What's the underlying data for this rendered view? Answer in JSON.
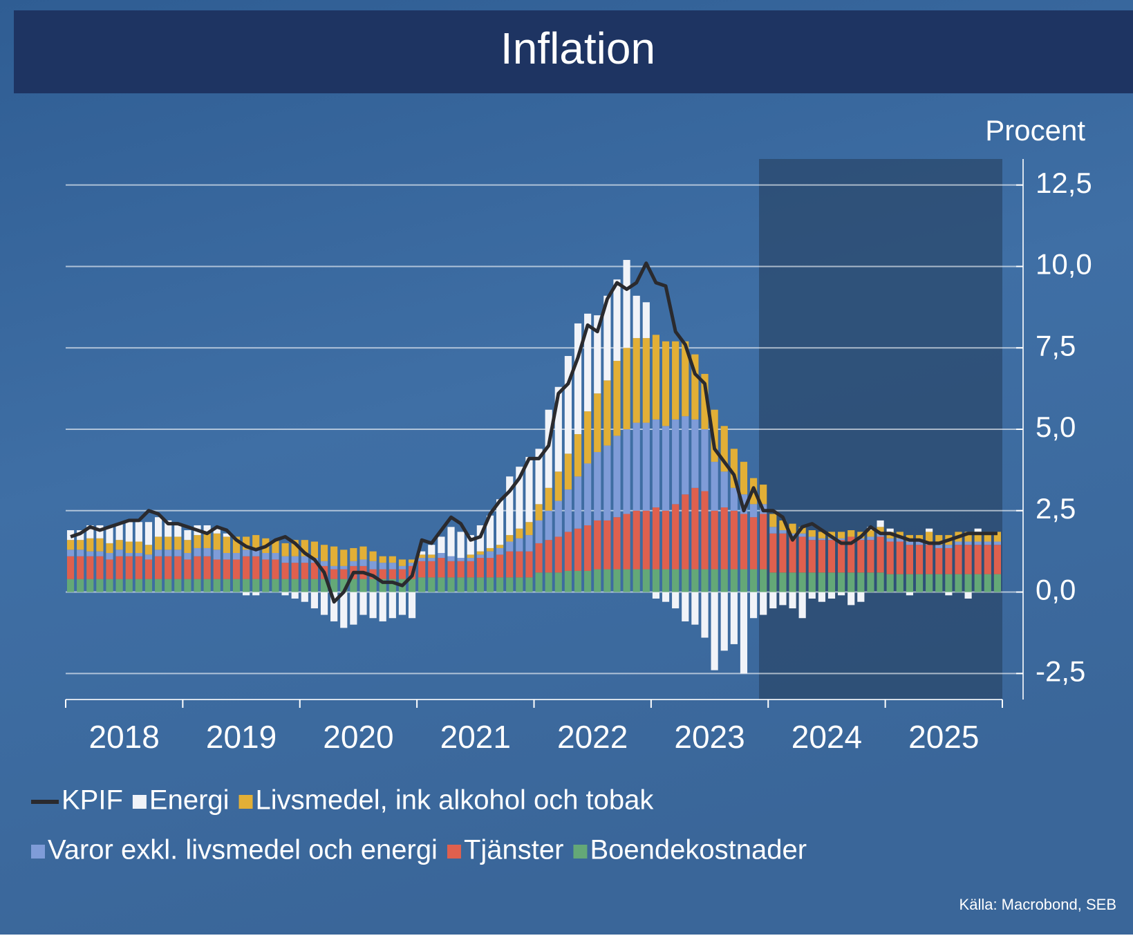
{
  "chart_data": {
    "type": "bar",
    "title": "Inflation",
    "y_axis_label": "Procent",
    "source": "Källa: Macrobond, SEB",
    "categories": [
      "2018",
      null,
      null,
      null,
      null,
      null,
      null,
      null,
      null,
      null,
      null,
      null,
      "2019",
      null,
      null,
      null,
      null,
      null,
      null,
      null,
      null,
      null,
      null,
      null,
      "2020",
      null,
      null,
      null,
      null,
      null,
      null,
      null,
      null,
      null,
      null,
      null,
      "2021",
      null,
      null,
      null,
      null,
      null,
      null,
      null,
      null,
      null,
      null,
      null,
      "2022",
      null,
      null,
      null,
      null,
      null,
      null,
      null,
      null,
      null,
      null,
      null,
      "2023",
      null,
      null,
      null,
      null,
      null,
      null,
      null,
      null,
      null,
      null,
      null,
      "2024",
      null,
      null,
      null,
      null,
      null,
      null,
      null,
      null,
      null,
      null,
      null,
      "2025",
      null,
      null,
      null,
      null,
      null,
      null,
      null,
      null,
      null,
      null,
      null
    ],
    "ylim": [
      -3.3,
      13.3
    ],
    "yticks": [
      {
        "value": -2.5,
        "label": "-2,5"
      },
      {
        "value": 0,
        "label": "0,0"
      },
      {
        "value": 2.5,
        "label": "2,5"
      },
      {
        "value": 5,
        "label": "5,0"
      },
      {
        "value": 7.5,
        "label": "7,5"
      },
      {
        "value": 10,
        "label": "10,0"
      },
      {
        "value": 12.5,
        "label": "12,5"
      }
    ],
    "grid": true,
    "series": [
      {
        "name": "KPIF",
        "type": "line",
        "color": "#2a2a2e",
        "values": [
          1.7,
          1.8,
          2.0,
          1.9,
          2.0,
          2.1,
          2.2,
          2.2,
          2.5,
          2.4,
          2.1,
          2.1,
          2.0,
          1.9,
          1.8,
          2.0,
          1.9,
          1.6,
          1.4,
          1.3,
          1.4,
          1.6,
          1.7,
          1.5,
          1.2,
          1.0,
          0.6,
          -0.3,
          0.0,
          0.6,
          0.6,
          0.5,
          0.3,
          0.3,
          0.2,
          0.5,
          1.6,
          1.5,
          1.9,
          2.3,
          2.1,
          1.6,
          1.7,
          2.4,
          2.8,
          3.1,
          3.5,
          4.1,
          4.1,
          4.5,
          6.1,
          6.4,
          7.2,
          8.2,
          8.0,
          9.0,
          9.5,
          9.3,
          9.5,
          10.1,
          9.5,
          9.4,
          8.0,
          7.6,
          6.7,
          6.4,
          4.4,
          4.0,
          3.6,
          2.5,
          3.2,
          2.5,
          2.5,
          2.3,
          1.6,
          2.0,
          2.1,
          1.9,
          1.7,
          1.5,
          1.5,
          1.7,
          2.0,
          1.8,
          1.8,
          1.7,
          1.6,
          1.6,
          1.5,
          1.5,
          1.6,
          1.7,
          1.8,
          1.8,
          1.8,
          1.8
        ]
      },
      {
        "name": "Energi",
        "color": "#f1f3f8",
        "values": [
          0.3,
          0.3,
          0.4,
          0.4,
          0.5,
          0.5,
          0.6,
          0.6,
          0.7,
          0.6,
          0.5,
          0.4,
          0.3,
          0.3,
          0.2,
          0.2,
          0.1,
          0.0,
          -0.1,
          -0.1,
          0.0,
          0.0,
          -0.1,
          -0.2,
          -0.3,
          -0.5,
          -0.7,
          -0.9,
          -1.1,
          -1.0,
          -0.7,
          -0.8,
          -0.9,
          -0.8,
          -0.7,
          -0.8,
          0.1,
          0.3,
          0.5,
          0.9,
          0.8,
          0.6,
          0.8,
          1.0,
          1.4,
          1.8,
          1.9,
          2.0,
          1.7,
          2.4,
          2.6,
          3.0,
          3.4,
          3.0,
          2.4,
          2.6,
          2.5,
          2.7,
          1.3,
          1.1,
          -0.2,
          -0.3,
          -0.5,
          -0.9,
          -1.0,
          -1.4,
          -2.4,
          -1.8,
          -1.6,
          -2.5,
          -0.8,
          -0.7,
          -0.5,
          -0.4,
          -0.5,
          -0.8,
          -0.2,
          -0.3,
          -0.2,
          -0.1,
          -0.4,
          -0.3,
          0.1,
          0.2,
          0.1,
          0.0,
          -0.1,
          0.0,
          0.1,
          0.0,
          -0.1,
          0.0,
          -0.2,
          0.1,
          0.0,
          0.0
        ]
      },
      {
        "name": "Livsmedel, ink alkohol och tobak",
        "color": "#e2af36",
        "values": [
          0.3,
          0.3,
          0.4,
          0.4,
          0.3,
          0.3,
          0.35,
          0.35,
          0.3,
          0.4,
          0.4,
          0.4,
          0.4,
          0.4,
          0.5,
          0.5,
          0.5,
          0.5,
          0.4,
          0.4,
          0.45,
          0.4,
          0.4,
          0.5,
          0.5,
          0.5,
          0.5,
          0.6,
          0.5,
          0.4,
          0.4,
          0.3,
          0.2,
          0.2,
          0.2,
          0.1,
          0.1,
          0.1,
          0.0,
          0.0,
          0.0,
          0.1,
          0.1,
          0.1,
          0.1,
          0.2,
          0.3,
          0.4,
          0.5,
          0.7,
          0.9,
          1.1,
          1.3,
          1.6,
          1.8,
          2.0,
          2.3,
          2.5,
          2.6,
          2.6,
          2.6,
          2.6,
          2.4,
          2.3,
          2.0,
          1.7,
          1.6,
          1.4,
          1.2,
          1.0,
          0.8,
          0.6,
          0.4,
          0.3,
          0.3,
          0.2,
          0.2,
          0.2,
          0.2,
          0.2,
          0.2,
          0.2,
          0.2,
          0.2,
          0.2,
          0.2,
          0.2,
          0.2,
          0.3,
          0.3,
          0.3,
          0.3,
          0.3,
          0.3,
          0.3,
          0.3
        ]
      },
      {
        "name": "Varor exkl. livsmedel och energi",
        "color": "#7f9cd8",
        "values": [
          0.2,
          0.2,
          0.15,
          0.15,
          0.2,
          0.2,
          0.1,
          0.1,
          0.15,
          0.2,
          0.2,
          0.2,
          0.2,
          0.25,
          0.25,
          0.3,
          0.2,
          0.2,
          0.2,
          0.25,
          0.2,
          0.2,
          0.2,
          0.2,
          0.2,
          0.15,
          0.15,
          0.1,
          0.1,
          0.15,
          0.2,
          0.25,
          0.2,
          0.2,
          0.1,
          0.1,
          0.1,
          0.1,
          0.15,
          0.15,
          0.1,
          0.1,
          0.1,
          0.2,
          0.2,
          0.3,
          0.4,
          0.5,
          0.7,
          0.9,
          1.1,
          1.3,
          1.6,
          1.9,
          2.1,
          2.3,
          2.5,
          2.6,
          2.7,
          2.7,
          2.7,
          2.6,
          2.6,
          2.4,
          2.1,
          1.9,
          1.5,
          1.1,
          0.7,
          0.6,
          0.4,
          0.3,
          0.2,
          0.1,
          0.1,
          0.1,
          0.1,
          0.05,
          0.05,
          0.05,
          0.0,
          0.05,
          0.1,
          0.1,
          0.1,
          0.1,
          0.1,
          0.1,
          0.1,
          0.1,
          0.1,
          0.1,
          0.1,
          0.1,
          0.1,
          0.1
        ]
      },
      {
        "name": "Tjänster",
        "color": "#df604e",
        "values": [
          0.7,
          0.7,
          0.7,
          0.7,
          0.6,
          0.7,
          0.7,
          0.7,
          0.6,
          0.7,
          0.7,
          0.7,
          0.6,
          0.7,
          0.7,
          0.6,
          0.6,
          0.6,
          0.7,
          0.7,
          0.6,
          0.6,
          0.5,
          0.5,
          0.5,
          0.5,
          0.4,
          0.3,
          0.3,
          0.4,
          0.4,
          0.3,
          0.3,
          0.3,
          0.3,
          0.4,
          0.5,
          0.5,
          0.6,
          0.5,
          0.5,
          0.5,
          0.6,
          0.6,
          0.7,
          0.8,
          0.8,
          0.8,
          0.9,
          1.0,
          1.1,
          1.2,
          1.3,
          1.4,
          1.5,
          1.5,
          1.6,
          1.7,
          1.8,
          1.8,
          1.9,
          1.8,
          2.0,
          2.3,
          2.5,
          2.4,
          1.8,
          1.9,
          1.8,
          1.7,
          1.6,
          1.7,
          1.2,
          1.2,
          1.1,
          1.1,
          1.0,
          1.0,
          1.0,
          1.0,
          1.1,
          1.0,
          1.0,
          1.1,
          1.0,
          1.0,
          0.9,
          0.9,
          0.9,
          0.8,
          0.8,
          0.9,
          0.9,
          0.9,
          0.9,
          0.9
        ]
      },
      {
        "name": "Boendekostnader",
        "color": "#64a877",
        "values": [
          0.4,
          0.4,
          0.4,
          0.4,
          0.4,
          0.4,
          0.4,
          0.4,
          0.4,
          0.4,
          0.4,
          0.4,
          0.4,
          0.4,
          0.4,
          0.4,
          0.4,
          0.4,
          0.4,
          0.4,
          0.4,
          0.4,
          0.4,
          0.4,
          0.4,
          0.4,
          0.4,
          0.4,
          0.4,
          0.4,
          0.4,
          0.4,
          0.4,
          0.4,
          0.4,
          0.4,
          0.45,
          0.45,
          0.45,
          0.45,
          0.45,
          0.45,
          0.45,
          0.45,
          0.45,
          0.45,
          0.45,
          0.45,
          0.6,
          0.6,
          0.6,
          0.65,
          0.65,
          0.65,
          0.7,
          0.7,
          0.7,
          0.7,
          0.7,
          0.7,
          0.7,
          0.7,
          0.7,
          0.7,
          0.7,
          0.7,
          0.7,
          0.7,
          0.7,
          0.7,
          0.7,
          0.7,
          0.6,
          0.6,
          0.6,
          0.6,
          0.6,
          0.6,
          0.6,
          0.6,
          0.6,
          0.6,
          0.6,
          0.6,
          0.55,
          0.55,
          0.55,
          0.55,
          0.55,
          0.55,
          0.55,
          0.55,
          0.55,
          0.55,
          0.55,
          0.55
        ]
      }
    ]
  }
}
